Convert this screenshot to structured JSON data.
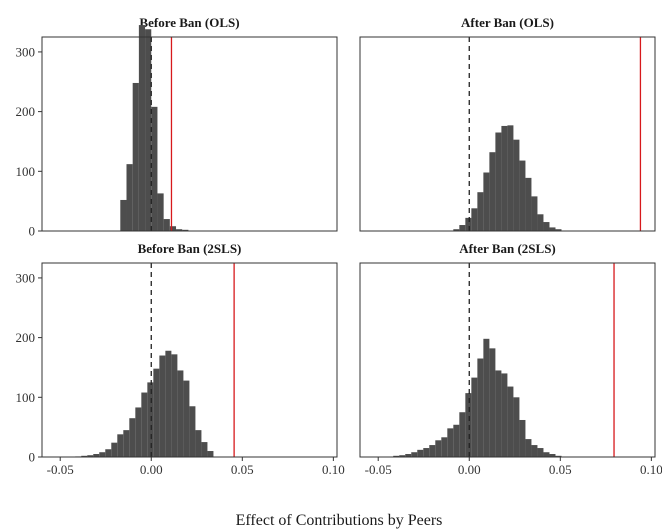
{
  "chart_data": {
    "type": "bar",
    "layout": "2x2 facet grid of histograms with shared axes",
    "xlabel": "Effect of Contributions by Peers",
    "ylabel": "",
    "xlim": [
      -0.06,
      0.102
    ],
    "ylim": [
      0,
      325
    ],
    "x_ticks": [
      -0.05,
      0.0,
      0.05,
      0.1
    ],
    "x_tick_labels": [
      "-0.05",
      "0.00",
      "0.05",
      "0.10"
    ],
    "y_ticks": [
      0,
      100,
      200,
      300
    ],
    "y_tick_labels": [
      "0",
      "100",
      "200",
      "300"
    ],
    "grid": false,
    "colors": {
      "bars": "#4d4d4d",
      "reference_line": "#d7191c",
      "zero_line": "#222222",
      "frame": "#333333"
    },
    "panels": [
      {
        "title": "Before Ban (OLS)",
        "bin_width": 0.0034,
        "bin_centers": [
          -0.0153,
          -0.0119,
          -0.0085,
          -0.0051,
          -0.0017,
          0.0017,
          0.0051,
          0.0085,
          0.0119,
          0.0153,
          0.0187
        ],
        "counts": [
          52,
          112,
          248,
          345,
          338,
          208,
          63,
          20,
          8,
          3,
          2
        ],
        "observed_estimate": 0.0111,
        "zero_line": 0.0
      },
      {
        "title": "After Ban (OLS)",
        "bin_width": 0.0033,
        "bin_centers": [
          -0.0071,
          -0.0038,
          -0.0005,
          0.0028,
          0.0061,
          0.0094,
          0.0127,
          0.016,
          0.0193,
          0.0226,
          0.0259,
          0.0292,
          0.0325,
          0.0358,
          0.0391,
          0.0424,
          0.0457,
          0.049
        ],
        "counts": [
          3,
          10,
          22,
          38,
          65,
          98,
          132,
          165,
          176,
          177,
          153,
          118,
          89,
          58,
          28,
          15,
          6,
          3
        ],
        "observed_estimate": 0.094,
        "zero_line": 0.0
      },
      {
        "title": "Before Ban (2SLS)",
        "bin_width": 0.0033,
        "bin_centers": [
          -0.0401,
          -0.0368,
          -0.0335,
          -0.0302,
          -0.0269,
          -0.0236,
          -0.0203,
          -0.017,
          -0.0137,
          -0.0104,
          -0.0071,
          -0.0038,
          -0.0005,
          0.0028,
          0.0061,
          0.0094,
          0.0127,
          0.016,
          0.0193,
          0.0226,
          0.0259,
          0.0292,
          0.0325
        ],
        "counts": [
          1,
          2,
          3,
          5,
          8,
          13,
          24,
          38,
          45,
          65,
          83,
          108,
          125,
          148,
          170,
          178,
          172,
          145,
          128,
          85,
          45,
          25,
          10
        ],
        "observed_estimate": 0.0455,
        "zero_line": 0.0
      },
      {
        "title": "After Ban (2SLS)",
        "bin_width": 0.0033,
        "bin_centers": [
          -0.0401,
          -0.0368,
          -0.0335,
          -0.0302,
          -0.0269,
          -0.0236,
          -0.0203,
          -0.017,
          -0.0137,
          -0.0104,
          -0.0071,
          -0.0038,
          -0.0005,
          0.0028,
          0.0061,
          0.0094,
          0.0127,
          0.016,
          0.0193,
          0.0226,
          0.0259,
          0.0292,
          0.0325,
          0.0358,
          0.0391,
          0.0424,
          0.0457,
          0.049
        ],
        "counts": [
          2,
          3,
          5,
          8,
          12,
          15,
          20,
          28,
          33,
          48,
          54,
          75,
          107,
          133,
          165,
          198,
          182,
          145,
          140,
          118,
          100,
          62,
          30,
          20,
          15,
          8,
          5,
          2
        ],
        "observed_estimate": 0.0795,
        "zero_line": 0.0
      }
    ]
  }
}
